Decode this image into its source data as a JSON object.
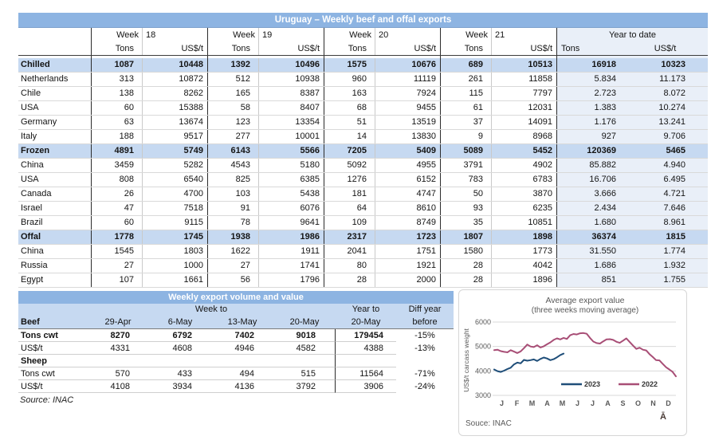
{
  "main_table": {
    "title": "Uruguay – Weekly beef and offal exports",
    "weeks": [
      {
        "label": "Week",
        "number": "18"
      },
      {
        "label": "Week",
        "number": "19"
      },
      {
        "label": "Week",
        "number": "20"
      },
      {
        "label": "Week",
        "number": "21"
      }
    ],
    "ytd_header": "Year to date",
    "subheaders": {
      "tons": "Tons",
      "usdt": "US$/t"
    },
    "rows": [
      {
        "label": "Chilled",
        "type": "section",
        "values": [
          "1087",
          "10448",
          "1392",
          "10496",
          "1575",
          "10676",
          "689",
          "10513",
          "16918",
          "10323"
        ]
      },
      {
        "label": "Netherlands",
        "type": "country",
        "values": [
          "313",
          "10872",
          "512",
          "10938",
          "960",
          "11119",
          "261",
          "11858",
          "5.834",
          "11.173"
        ]
      },
      {
        "label": "Chile",
        "type": "country",
        "values": [
          "138",
          "8262",
          "165",
          "8387",
          "163",
          "7924",
          "115",
          "7797",
          "2.723",
          "8.072"
        ]
      },
      {
        "label": "USA",
        "type": "country",
        "values": [
          "60",
          "15388",
          "58",
          "8407",
          "68",
          "9455",
          "61",
          "12031",
          "1.383",
          "10.274"
        ]
      },
      {
        "label": "Germany",
        "type": "country",
        "values": [
          "63",
          "13674",
          "123",
          "13354",
          "51",
          "13519",
          "37",
          "14091",
          "1.176",
          "13.241"
        ]
      },
      {
        "label": "Italy",
        "type": "country",
        "values": [
          "188",
          "9517",
          "277",
          "10001",
          "14",
          "13830",
          "9",
          "8968",
          "927",
          "9.706"
        ]
      },
      {
        "label": "Frozen",
        "type": "section",
        "values": [
          "4891",
          "5749",
          "6143",
          "5566",
          "7205",
          "5409",
          "5089",
          "5452",
          "120369",
          "5465"
        ]
      },
      {
        "label": "China",
        "type": "country",
        "values": [
          "3459",
          "5282",
          "4543",
          "5180",
          "5092",
          "4955",
          "3791",
          "4902",
          "85.882",
          "4.940"
        ]
      },
      {
        "label": "USA",
        "type": "country",
        "values": [
          "808",
          "6540",
          "825",
          "6385",
          "1276",
          "6152",
          "783",
          "6783",
          "16.706",
          "6.495"
        ]
      },
      {
        "label": "Canada",
        "type": "country",
        "values": [
          "26",
          "4700",
          "103",
          "5438",
          "181",
          "4747",
          "50",
          "3870",
          "3.666",
          "4.721"
        ]
      },
      {
        "label": "Israel",
        "type": "country",
        "values": [
          "47",
          "7518",
          "91",
          "6076",
          "64",
          "8610",
          "93",
          "6235",
          "2.434",
          "7.646"
        ]
      },
      {
        "label": "Brazil",
        "type": "country",
        "values": [
          "60",
          "9115",
          "78",
          "9641",
          "109",
          "8749",
          "35",
          "10851",
          "1.680",
          "8.961"
        ]
      },
      {
        "label": "Offal",
        "type": "section",
        "values": [
          "1778",
          "1745",
          "1938",
          "1986",
          "2317",
          "1723",
          "1807",
          "1898",
          "36374",
          "1815"
        ]
      },
      {
        "label": "China",
        "type": "country",
        "values": [
          "1545",
          "1803",
          "1622",
          "1911",
          "2041",
          "1751",
          "1580",
          "1773",
          "31.550",
          "1.774"
        ]
      },
      {
        "label": "Russia",
        "type": "country",
        "values": [
          "27",
          "1000",
          "27",
          "1741",
          "80",
          "1921",
          "28",
          "4042",
          "1.686",
          "1.932"
        ]
      },
      {
        "label": "Egypt",
        "type": "country",
        "values": [
          "107",
          "1661",
          "56",
          "1796",
          "28",
          "2000",
          "28",
          "1896",
          "851",
          "1.755"
        ]
      }
    ]
  },
  "weekly_table": {
    "title": "Weekly export volume and value",
    "header": {
      "week_to": "Week to",
      "year_to": "Year to",
      "diff_year": "Diff year",
      "before": "before",
      "dates": [
        "29-Apr",
        "6-May",
        "13-May",
        "20-May"
      ],
      "year_date": "20-May"
    },
    "sections": [
      {
        "name": "Beef",
        "rows": [
          {
            "label": "Tons cwt",
            "bold": true,
            "values": [
              "8270",
              "6792",
              "7402",
              "9018"
            ],
            "year": "179454",
            "diff": "-15%"
          },
          {
            "label": "US$/t",
            "bold": false,
            "values": [
              "4331",
              "4608",
              "4946",
              "4582"
            ],
            "year": "4388",
            "diff": "-13%"
          }
        ]
      },
      {
        "name": "Sheep",
        "rows": [
          {
            "label": "Tons cwt",
            "bold": false,
            "values": [
              "570",
              "433",
              "494",
              "515"
            ],
            "year": "11564",
            "diff": "-71%"
          },
          {
            "label": "US$/t",
            "bold": false,
            "values": [
              "4108",
              "3934",
              "4136",
              "3792"
            ],
            "year": "3906",
            "diff": "-24%"
          }
        ]
      }
    ],
    "source": "Source: INAC"
  },
  "chart_data": {
    "type": "line",
    "title": "Average export value",
    "subtitle": "(three weeks moving average)",
    "ylabel": "US$/t carcass weight",
    "ylim": [
      3000,
      6000
    ],
    "yticks": [
      3000,
      4000,
      5000,
      6000
    ],
    "grid": "horizontal",
    "legend_position": "bottom-inside",
    "x_months": [
      "J",
      "F",
      "M",
      "A",
      "M",
      "J",
      "J",
      "A",
      "S",
      "O",
      "N",
      "D"
    ],
    "x_unit": "weekly points, Jan–Dec",
    "series": [
      {
        "name": "2023",
        "color": "#1F4E79",
        "values": [
          4060,
          3990,
          3960,
          4010,
          4080,
          4130,
          4270,
          4340,
          4310,
          4450,
          4420,
          4440,
          4470,
          4410,
          4490,
          4550,
          4510,
          4440,
          4480,
          4560,
          4650,
          4710
        ]
      },
      {
        "name": "2022",
        "color": "#A84E76",
        "values": [
          4850,
          4870,
          4810,
          4780,
          4760,
          4850,
          4790,
          4730,
          4800,
          4930,
          5080,
          5000,
          4975,
          5050,
          4960,
          5010,
          5090,
          5170,
          5270,
          5330,
          5290,
          5350,
          5310,
          5460,
          5510,
          5490,
          5540,
          5550,
          5520,
          5350,
          5200,
          5140,
          5120,
          5210,
          5290,
          5300,
          5270,
          5190,
          5150,
          5240,
          5330,
          5180,
          5040,
          4900,
          4950,
          4870,
          4840,
          4690,
          4570,
          4440,
          4430,
          4290,
          4150,
          4060,
          3960,
          3780
        ]
      }
    ],
    "source": "Souce: INAC",
    "corner_mark": "Ā"
  }
}
